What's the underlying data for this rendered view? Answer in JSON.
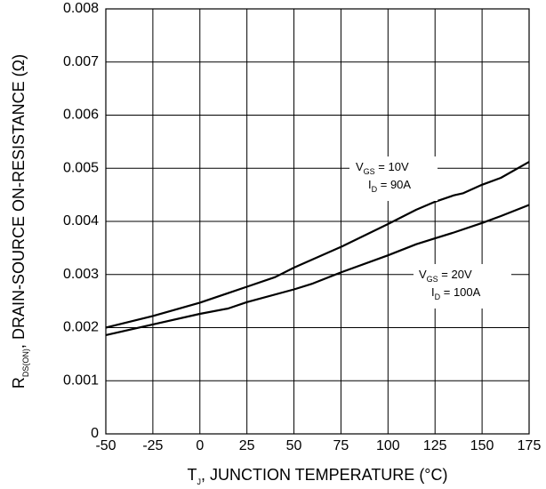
{
  "chart_data": {
    "type": "line",
    "xlabel": {
      "main": "T",
      "sub": "J",
      "rest": ", JUNCTION TEMPERATURE (°C)"
    },
    "ylabel": {
      "main": "R",
      "sub": "DS(ON)",
      "rest": ", DRAIN-SOURCE ON-RESISTANCE (Ω)"
    },
    "xlim": [
      -50,
      175
    ],
    "ylim": [
      0,
      0.008
    ],
    "x_ticks": [
      "-50",
      "-25",
      "0",
      "25",
      "50",
      "75",
      "100",
      "125",
      "150",
      "175"
    ],
    "y_ticks": [
      "0",
      "0.001",
      "0.002",
      "0.003",
      "0.004",
      "0.005",
      "0.006",
      "0.007",
      "0.008"
    ],
    "grid": true,
    "series": [
      {
        "label_lines": [
          {
            "main": "V",
            "sub": "GS",
            "rest": " = 10V"
          },
          {
            "main": "I",
            "sub": "D",
            "rest": " = 90A"
          }
        ],
        "points": [
          [
            -50,
            0.002
          ],
          [
            -25,
            0.00222
          ],
          [
            0,
            0.00247
          ],
          [
            15,
            0.00265
          ],
          [
            25,
            0.00277
          ],
          [
            40,
            0.00295
          ],
          [
            50,
            0.00313
          ],
          [
            75,
            0.00352
          ],
          [
            100,
            0.00395
          ],
          [
            115,
            0.00422
          ],
          [
            125,
            0.00437
          ],
          [
            135,
            0.00449
          ],
          [
            140,
            0.00453
          ],
          [
            150,
            0.00469
          ],
          [
            160,
            0.00482
          ],
          [
            175,
            0.00512
          ]
        ]
      },
      {
        "label_lines": [
          {
            "main": "V",
            "sub": "GS",
            "rest": " = 20V"
          },
          {
            "main": "I",
            "sub": "D",
            "rest": " = 100A"
          }
        ],
        "points": [
          [
            -50,
            0.00186
          ],
          [
            -25,
            0.00206
          ],
          [
            0,
            0.00226
          ],
          [
            15,
            0.00236
          ],
          [
            25,
            0.00248
          ],
          [
            50,
            0.00272
          ],
          [
            60,
            0.00283
          ],
          [
            75,
            0.00304
          ],
          [
            100,
            0.00336
          ],
          [
            115,
            0.00357
          ],
          [
            125,
            0.00368
          ],
          [
            135,
            0.00379
          ],
          [
            150,
            0.00397
          ],
          [
            160,
            0.0041
          ],
          [
            175,
            0.00431
          ]
        ]
      }
    ]
  }
}
